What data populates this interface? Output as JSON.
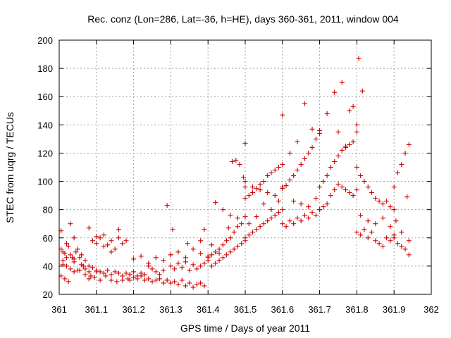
{
  "chart_data": {
    "type": "scatter",
    "title": "Rec. conz (Lon=286, Lat=-36, h=HE), days 360-361, 2011, window 004",
    "xlabel": "GPS time / Days of year 2011",
    "ylabel": "STEC from uqrg / TECUs",
    "xlim": [
      361,
      362
    ],
    "ylim": [
      20,
      200
    ],
    "xticks": [
      361,
      361.1,
      361.2,
      361.3,
      361.4,
      361.5,
      361.6,
      361.7,
      361.8,
      361.9,
      362
    ],
    "xtick_labels": [
      "361",
      "361.1",
      "361.2",
      "361.3",
      "361.4",
      "361.5",
      "361.6",
      "361.7",
      "361.8",
      "361.9",
      "362"
    ],
    "yticks": [
      20,
      40,
      60,
      80,
      100,
      120,
      140,
      160,
      180,
      200
    ],
    "ytick_labels": [
      "20",
      "40",
      "60",
      "80",
      "100",
      "120",
      "140",
      "160",
      "180",
      "200"
    ],
    "grid": true,
    "legend": "none",
    "marker": "plus",
    "color": "#cc0000",
    "series": [
      {
        "x": [
          361.005,
          361.01,
          361.02,
          361.03,
          361.04,
          361.05,
          361.06,
          361.07,
          361.005,
          361.015,
          361.025,
          361.035,
          361.045,
          361.055,
          361.065,
          361.01,
          361.02,
          361.03,
          361.04,
          361.05,
          361.06,
          361.07,
          361.08,
          361.005,
          361.015,
          361.025,
          361.04,
          361.055,
          361.07,
          361.085,
          361.1,
          361.01,
          361.02,
          361.03,
          361.04,
          361.08,
          361.09,
          361.1,
          361.11,
          361.12,
          361.13,
          361.14,
          361.15,
          361.16,
          361.17,
          361.18,
          361.19,
          361.08,
          361.095,
          361.11,
          361.125,
          361.14,
          361.155,
          361.17,
          361.185,
          361.09,
          361.1,
          361.11,
          361.12,
          361.13,
          361.14,
          361.15,
          361.16,
          361.17,
          361.08,
          361.1,
          361.12,
          361.14,
          361.16,
          361.18,
          361.19,
          361.2,
          361.21,
          361.22,
          361.23,
          361.24,
          361.25,
          361.26,
          361.27,
          361.28,
          361.19,
          361.2,
          361.21,
          361.22,
          361.23,
          361.24,
          361.25,
          361.26,
          361.27,
          361.28,
          361.29,
          361.2,
          361.22,
          361.24,
          361.26,
          361.28,
          361.3,
          361.3,
          361.31,
          361.32,
          361.33,
          361.34,
          361.35,
          361.36,
          361.37,
          361.38,
          361.39,
          361.4,
          361.29,
          361.3,
          361.31,
          361.32,
          361.33,
          361.34,
          361.35,
          361.36,
          361.37,
          361.38,
          361.39,
          361.3,
          361.32,
          361.34,
          361.36,
          361.38,
          361.4,
          361.29,
          361.305,
          361.345,
          361.38,
          361.39,
          361.4,
          361.41,
          361.42,
          361.43,
          361.44,
          361.45,
          361.46,
          361.47,
          361.48,
          361.49,
          361.5,
          361.41,
          361.42,
          361.43,
          361.44,
          361.45,
          361.46,
          361.47,
          361.48,
          361.49,
          361.5,
          361.42,
          361.44,
          361.46,
          361.48,
          361.5,
          361.41,
          361.43,
          361.455,
          361.465,
          361.475,
          361.485,
          361.495,
          361.5,
          361.5,
          361.51,
          361.52,
          361.53,
          361.54,
          361.55,
          361.56,
          361.57,
          361.58,
          361.59,
          361.6,
          361.5,
          361.51,
          361.52,
          361.53,
          361.54,
          361.55,
          361.56,
          361.57,
          361.58,
          361.59,
          361.6,
          361.51,
          361.53,
          361.55,
          361.57,
          361.59,
          361.5,
          361.52,
          361.54,
          361.56,
          361.58,
          361.6,
          361.6,
          361.61,
          361.62,
          361.63,
          361.64,
          361.65,
          361.66,
          361.67,
          361.68,
          361.69,
          361.7,
          361.6,
          361.61,
          361.62,
          361.63,
          361.64,
          361.65,
          361.66,
          361.67,
          361.68,
          361.69,
          361.7,
          361.6,
          361.62,
          361.64,
          361.66,
          361.68,
          361.7,
          361.63,
          361.65,
          361.67,
          361.69,
          361.7,
          361.71,
          361.72,
          361.73,
          361.74,
          361.75,
          361.76,
          361.77,
          361.78,
          361.79,
          361.8,
          361.7,
          361.71,
          361.72,
          361.73,
          361.74,
          361.75,
          361.76,
          361.77,
          361.78,
          361.79,
          361.8,
          361.72,
          361.74,
          361.76,
          361.78,
          361.8,
          361.75,
          361.77,
          361.79,
          361.805,
          361.815,
          361.8,
          361.81,
          361.82,
          361.83,
          361.84,
          361.85,
          361.86,
          361.87,
          361.88,
          361.89,
          361.9,
          361.8,
          361.81,
          361.82,
          361.83,
          361.84,
          361.85,
          361.86,
          361.87,
          361.88,
          361.89,
          361.9,
          361.81,
          361.83,
          361.85,
          361.87,
          361.89,
          361.9,
          361.91,
          361.92,
          361.93,
          361.94,
          361.9,
          361.91,
          361.92,
          361.93,
          361.94,
          361.905,
          361.92,
          361.935,
          361.94
        ],
        "y": [
          65,
          50,
          56,
          48,
          45,
          52,
          48,
          44,
          52,
          49,
          54,
          46,
          50,
          46,
          40,
          44,
          40,
          38,
          43,
          37,
          41,
          38,
          36,
          33,
          31,
          29,
          36,
          37,
          34,
          33,
          36,
          41,
          46,
          70,
          60,
          40,
          39,
          37,
          36,
          35,
          37,
          34,
          36,
          35,
          33,
          35,
          34,
          31,
          32,
          30,
          33,
          30,
          29,
          30,
          31,
          58,
          56,
          60,
          54,
          55,
          50,
          52,
          60,
          56,
          67,
          61,
          62,
          58,
          66,
          58,
          34,
          36,
          33,
          35,
          34,
          40,
          38,
          36,
          34,
          37,
          30,
          32,
          31,
          33,
          30,
          31,
          29,
          30,
          31,
          28,
          30,
          45,
          47,
          42,
          46,
          44,
          48,
          40,
          38,
          42,
          39,
          43,
          37,
          41,
          38,
          40,
          42,
          44,
          30,
          28,
          29,
          27,
          30,
          26,
          28,
          25,
          27,
          28,
          26,
          48,
          50,
          46,
          52,
          49,
          47,
          83,
          66,
          56,
          58,
          66,
          46,
          48,
          50,
          52,
          55,
          58,
          60,
          64,
          68,
          70,
          75,
          40,
          42,
          44,
          46,
          48,
          50,
          52,
          54,
          56,
          58,
          85,
          80,
          76,
          74,
          96,
          55,
          49,
          67,
          114,
          115,
          112,
          103,
          127,
          88,
          90,
          92,
          95,
          98,
          100,
          104,
          106,
          108,
          110,
          112,
          60,
          62,
          64,
          66,
          68,
          70,
          72,
          74,
          76,
          78,
          80,
          70,
          75,
          84,
          80,
          86,
          100,
          96,
          94,
          92,
          90,
          96,
          95,
          97,
          101,
          104,
          108,
          112,
          116,
          120,
          124,
          130,
          134,
          70,
          68,
          72,
          70,
          74,
          72,
          76,
          74,
          78,
          76,
          80,
          147,
          120,
          128,
          155,
          137,
          136,
          86,
          84,
          82,
          88,
          96,
          100,
          104,
          110,
          114,
          118,
          122,
          124,
          126,
          128,
          135,
          80,
          82,
          84,
          90,
          94,
          98,
          96,
          94,
          92,
          90,
          94,
          148,
          163,
          170,
          150,
          140,
          135,
          125,
          153,
          187,
          164,
          110,
          104,
          100,
          96,
          92,
          88,
          86,
          84,
          86,
          82,
          80,
          64,
          62,
          66,
          60,
          64,
          58,
          56,
          54,
          60,
          58,
          62,
          76,
          72,
          70,
          74,
          68,
          96,
          106,
          112,
          120,
          126,
          60,
          56,
          54,
          52,
          48,
          72,
          64,
          89,
          58
        ]
      }
    ]
  }
}
